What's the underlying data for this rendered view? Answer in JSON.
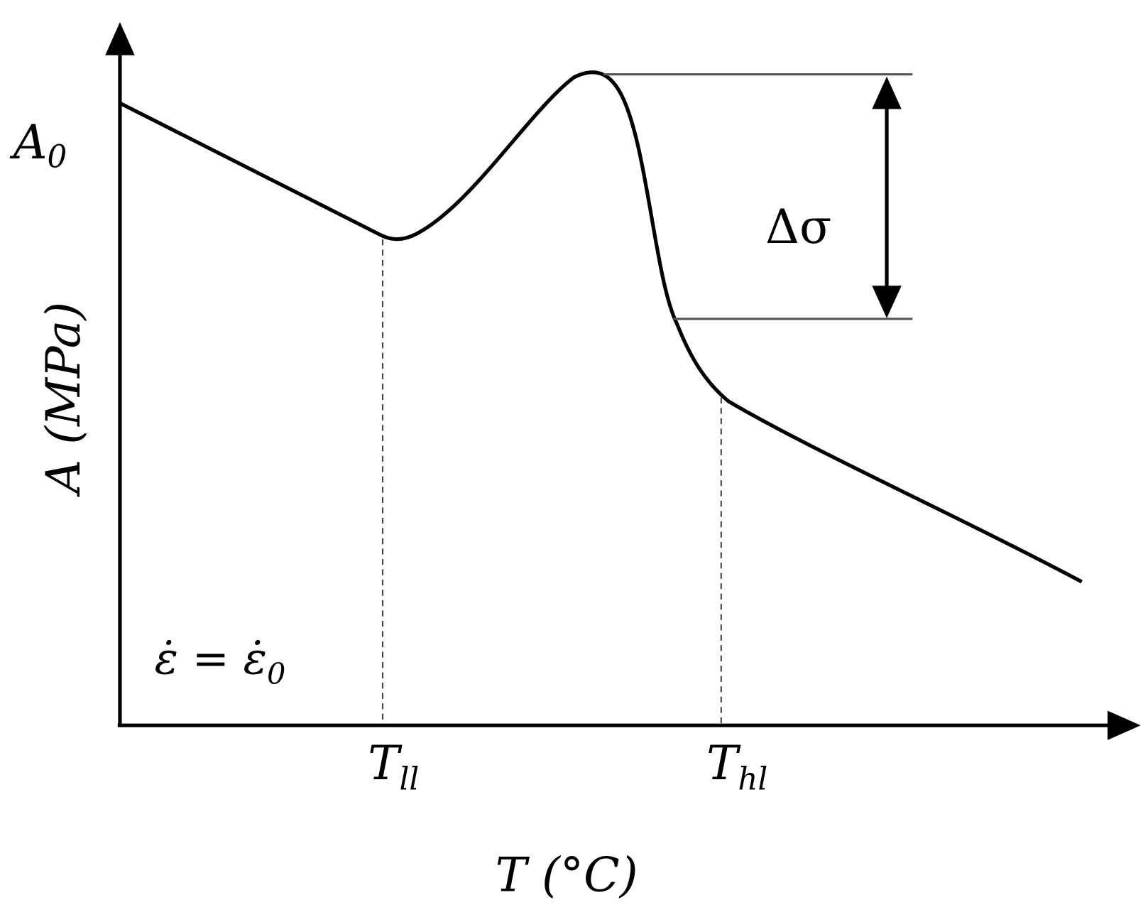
{
  "diagram": {
    "y_axis_label": "A (MPa)",
    "x_axis_label": "T (°C)",
    "a0": {
      "base": "A",
      "sub": "0"
    },
    "delta_sigma": "Δσ",
    "strain_rate": {
      "lhs": "ε̇ = ε̇",
      "sub": "0"
    },
    "t_ll": {
      "base": "T",
      "sub": "ll"
    },
    "t_hl": {
      "base": "T",
      "sub": "hl"
    }
  }
}
